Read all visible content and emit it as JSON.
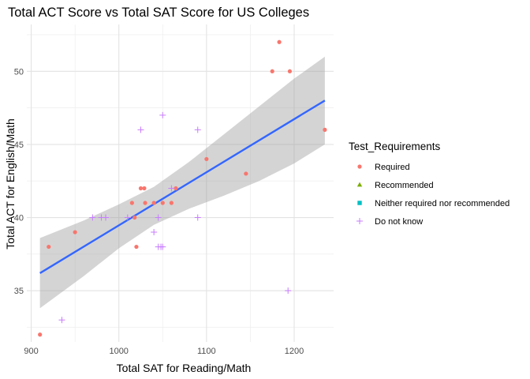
{
  "chart_data": {
    "type": "scatter",
    "title": "Total ACT Score vs Total SAT Score for US Colleges",
    "xlabel": "Total SAT for Reading/Math",
    "ylabel": "Total ACT for English/Math",
    "xlim": [
      895,
      1245
    ],
    "ylim": [
      31.5,
      53.2
    ],
    "x_ticks": [
      900,
      1000,
      1100,
      1200
    ],
    "y_ticks": [
      35,
      40,
      45,
      50
    ],
    "grid": true,
    "legend": {
      "title": "Test_Requirements",
      "placement": "right",
      "entries": [
        {
          "name": "Required",
          "color": "#F8766D",
          "shape": "circle"
        },
        {
          "name": "Recommended",
          "color": "#7CAE00",
          "shape": "triangle"
        },
        {
          "name": "Neither required nor recommended",
          "color": "#00BFC4",
          "shape": "square"
        },
        {
          "name": "Do not know",
          "color": "#C77CFF",
          "shape": "plus"
        }
      ]
    },
    "series": [
      {
        "name": "Required",
        "points": [
          [
            910,
            32
          ],
          [
            920,
            38
          ],
          [
            950,
            39
          ],
          [
            1015,
            41
          ],
          [
            1018,
            40
          ],
          [
            1020,
            38
          ],
          [
            1025,
            42
          ],
          [
            1029,
            42
          ],
          [
            1030,
            41
          ],
          [
            1040,
            41
          ],
          [
            1050,
            41
          ],
          [
            1060,
            41
          ],
          [
            1065,
            42
          ],
          [
            1100,
            44
          ],
          [
            1145,
            43
          ],
          [
            1175,
            50
          ],
          [
            1183,
            52
          ],
          [
            1195,
            50
          ],
          [
            1235,
            46
          ]
        ]
      },
      {
        "name": "Do not know",
        "points": [
          [
            935,
            33
          ],
          [
            970,
            40
          ],
          [
            980,
            40
          ],
          [
            985,
            40
          ],
          [
            1010,
            40
          ],
          [
            1025,
            46
          ],
          [
            1040,
            39
          ],
          [
            1045,
            38
          ],
          [
            1045,
            40
          ],
          [
            1048,
            38
          ],
          [
            1050,
            38
          ],
          [
            1050,
            47
          ],
          [
            1060,
            42
          ],
          [
            1090,
            46
          ],
          [
            1090,
            40
          ],
          [
            1193,
            35
          ]
        ]
      }
    ],
    "trend_line": {
      "method": "linear",
      "color": "#3366FF",
      "points": [
        [
          910,
          36.2
        ],
        [
          1235,
          48
        ]
      ],
      "confidence_band": {
        "color": "#999999",
        "x": [
          910,
          960,
          1000,
          1040,
          1080,
          1120,
          1160,
          1200,
          1235
        ],
        "upper": [
          38.6,
          39.8,
          40.9,
          42.1,
          43.8,
          45.7,
          47.6,
          49.5,
          51.0
        ],
        "lower": [
          33.8,
          36.0,
          37.9,
          39.5,
          40.6,
          41.5,
          42.5,
          43.7,
          45.0
        ]
      }
    }
  }
}
